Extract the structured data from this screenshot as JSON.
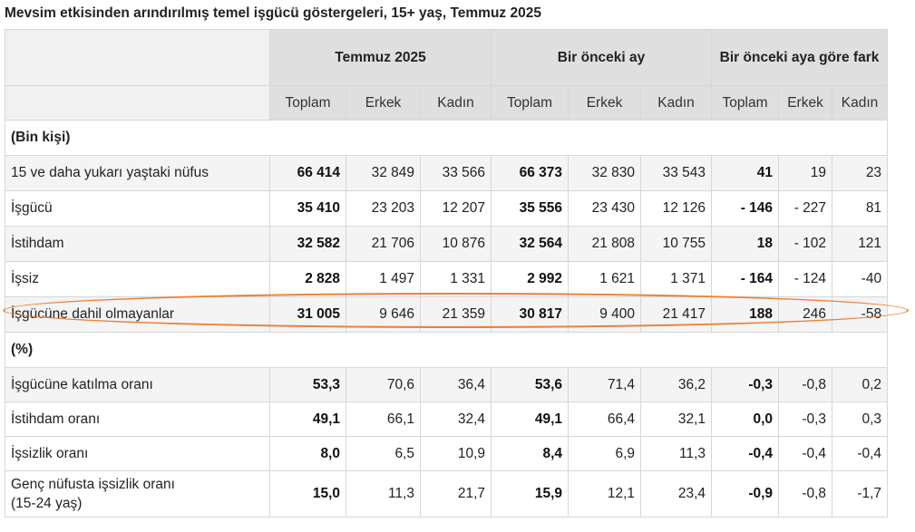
{
  "title": "Mevsim etkisinden arındırılmış temel işgücü göstergeleri, 15+ yaş, Temmuz 2025",
  "groups": [
    "Temmuz 2025",
    "Bir önceki ay",
    "Bir önceki aya göre fark"
  ],
  "subheaders": [
    "Toplam",
    "Erkek",
    "Kadın",
    "Toplam",
    "Erkek",
    "Kadın",
    "Toplam",
    "Erkek",
    "Kadın"
  ],
  "sections": {
    "thousands": "(Bin kişi)",
    "percent": "(%)"
  },
  "rows_thousands": [
    {
      "label": "15 ve daha yukarı yaştaki nüfus",
      "values": [
        "66 414",
        "32 849",
        "33 566",
        "66 373",
        "32 830",
        "33 543",
        "41",
        "19",
        "23"
      ]
    },
    {
      "label": "İşgücü",
      "values": [
        "35 410",
        "23 203",
        "12 207",
        "35 556",
        "23 430",
        "12 126",
        "- 146",
        "- 227",
        "81"
      ]
    },
    {
      "label": "İstihdam",
      "values": [
        "32 582",
        "21 706",
        "10 876",
        "32 564",
        "21 808",
        "10 755",
        "18",
        "- 102",
        "121"
      ]
    },
    {
      "label": "İşsiz",
      "values": [
        "2 828",
        "1 497",
        "1 331",
        "2 992",
        "1 621",
        "1 371",
        "- 164",
        "- 124",
        "-40"
      ]
    },
    {
      "label": "İşgücüne dahil olmayanlar",
      "values": [
        "31 005",
        "9 646",
        "21 359",
        "30 817",
        "9 400",
        "21 417",
        "188",
        "246",
        "-58"
      ]
    }
  ],
  "rows_percent": [
    {
      "label": "İşgücüne katılma oranı",
      "values": [
        "53,3",
        "70,6",
        "36,4",
        "53,6",
        "71,4",
        "36,2",
        "-0,3",
        "-0,8",
        "0,2"
      ]
    },
    {
      "label": "İstihdam oranı",
      "values": [
        "49,1",
        "66,1",
        "32,4",
        "49,1",
        "66,4",
        "32,1",
        "0,0",
        "-0,3",
        "0,3"
      ]
    },
    {
      "label": "İşsizlik oranı",
      "values": [
        "8,0",
        "6,5",
        "10,9",
        "8,4",
        "6,9",
        "11,3",
        "-0,4",
        "-0,4",
        "-0,4"
      ]
    },
    {
      "label_line1": "Genç nüfusta işsizlik oranı",
      "label_line2": "(15-24 yaş)",
      "values": [
        "15,0",
        "11,3",
        "21,7",
        "15,9",
        "12,1",
        "23,4",
        "-0,9",
        "-0,8",
        "-1,7"
      ]
    }
  ],
  "highlight_color": "#ed7d31"
}
